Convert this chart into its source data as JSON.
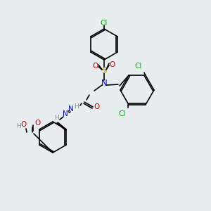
{
  "bg_color": "#e8eef0",
  "bond_color": "#000000",
  "figsize": [
    3.0,
    3.0
  ],
  "dpi": 100,
  "atom_colors": {
    "N": "#0000cc",
    "O": "#cc0000",
    "S": "#b8960a",
    "Cl": "#00aa00",
    "H": "#7a9090",
    "C": "#000000"
  },
  "font_size_atom": 7.5,
  "font_size_small": 6.5
}
